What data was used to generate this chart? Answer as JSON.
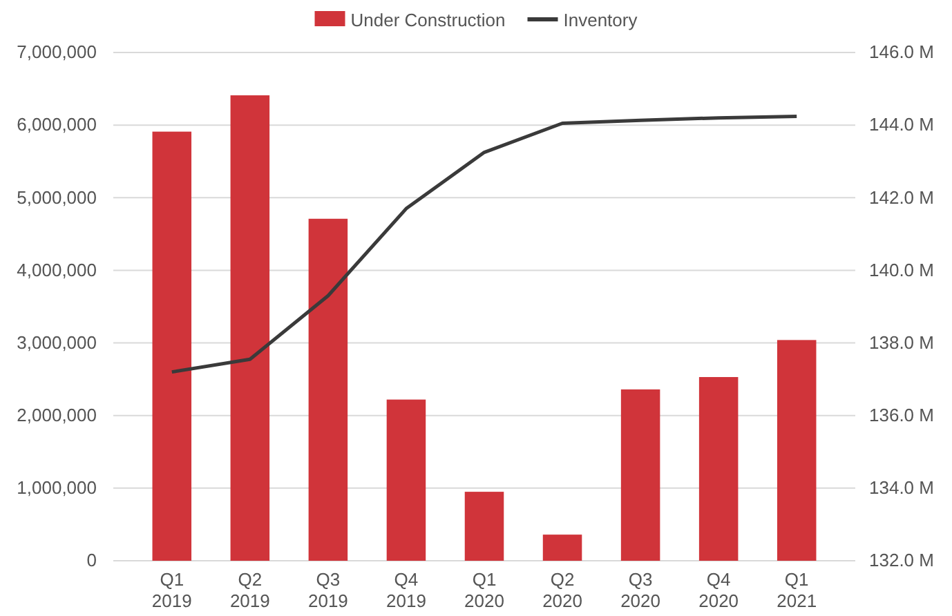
{
  "chart_data": {
    "type": "bar",
    "categories": [
      "Q1 2019",
      "Q2 2019",
      "Q3 2019",
      "Q4 2019",
      "Q1 2020",
      "Q2 2020",
      "Q3 2020",
      "Q4 2020",
      "Q1 2021"
    ],
    "series": [
      {
        "name": "Under Construction",
        "color": "#d0343a",
        "values": [
          5910000,
          6410000,
          4710000,
          2220000,
          950000,
          360000,
          2360000,
          2530000,
          3040000
        ]
      },
      {
        "name": "Inventory",
        "type": "line",
        "axis": "y2",
        "color": "#3a3a3a",
        "values": [
          137.2,
          137.55,
          139.3,
          141.7,
          143.25,
          144.05,
          144.13,
          144.2,
          144.24
        ]
      }
    ],
    "ylim": [
      0,
      7000000
    ],
    "yticks": [
      {
        "value": 0,
        "label": "0"
      },
      {
        "value": 1000000,
        "label": "1,000,000"
      },
      {
        "value": 2000000,
        "label": "2,000,000"
      },
      {
        "value": 3000000,
        "label": "3,000,000"
      },
      {
        "value": 4000000,
        "label": "4,000,000"
      },
      {
        "value": 5000000,
        "label": "5,000,000"
      },
      {
        "value": 6000000,
        "label": "6,000,000"
      },
      {
        "value": 7000000,
        "label": "7,000,000"
      }
    ],
    "y2lim": [
      132,
      146
    ],
    "y2ticks": [
      {
        "value": 132,
        "label": "132.0 M"
      },
      {
        "value": 134,
        "label": "134.0 M"
      },
      {
        "value": 136,
        "label": "136.0 M"
      },
      {
        "value": 138,
        "label": "138.0 M"
      },
      {
        "value": 140,
        "label": "140.0 M"
      },
      {
        "value": 142,
        "label": "142.0 M"
      },
      {
        "value": 144,
        "label": "144.0 M"
      },
      {
        "value": 146,
        "label": "146.0 M"
      }
    ],
    "grid": "y",
    "legend": "top"
  }
}
